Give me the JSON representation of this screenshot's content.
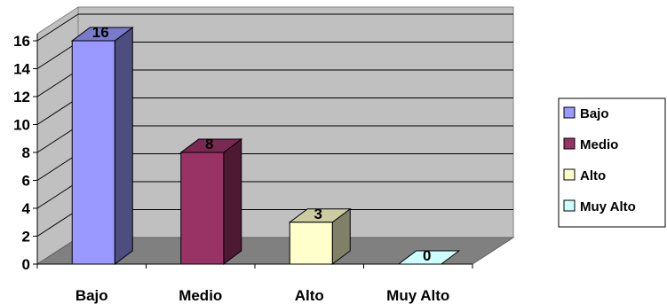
{
  "chart_data": {
    "type": "bar",
    "categories": [
      "Bajo",
      "Medio",
      "Alto",
      "Muy Alto"
    ],
    "values": [
      16,
      8,
      3,
      0
    ],
    "title": "",
    "xlabel": "",
    "ylabel": "",
    "ylim": [
      0,
      16
    ],
    "yticks": [
      0,
      2,
      4,
      6,
      8,
      10,
      12,
      14,
      16
    ],
    "grid": true,
    "legend_position": "right",
    "legend": [
      "Bajo",
      "Medio",
      "Alto",
      "Muy Alto"
    ],
    "colors": [
      "#9999ff",
      "#993366",
      "#ffffcc",
      "#ccffff"
    ],
    "side_colors": [
      "#4d4d80",
      "#4d1933",
      "#808066",
      "#668080"
    ],
    "top_colors": [
      "#7a7acc",
      "#7a2952",
      "#ccccA3",
      "#a3cccc"
    ],
    "wall_color": "#c0c0c0",
    "floor_color": "#808080"
  }
}
